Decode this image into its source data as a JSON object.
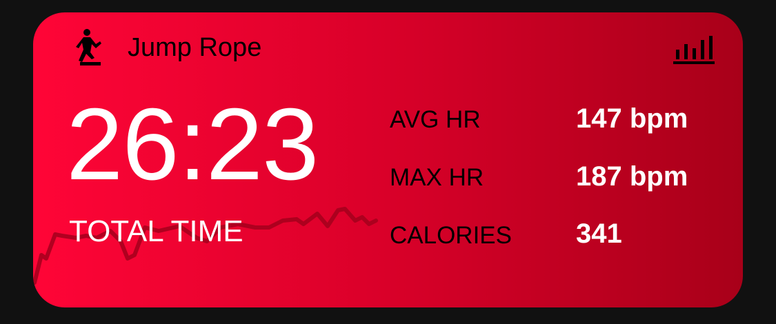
{
  "workout": {
    "title": "Jump Rope",
    "activity_icon": "figure-jump-rope-icon",
    "stats_icon": "bar-chart-icon",
    "total_time": "26:23",
    "total_time_label": "TOTAL TIME",
    "metrics": [
      {
        "label": "AVG HR",
        "value": "147 bpm"
      },
      {
        "label": "MAX HR",
        "value": "187 bpm"
      },
      {
        "label": "CALORIES",
        "value": "341"
      }
    ]
  },
  "colors": {
    "gradient_start": "#ff0537",
    "gradient_end": "#a80019",
    "hr_line": "#a3001c"
  }
}
